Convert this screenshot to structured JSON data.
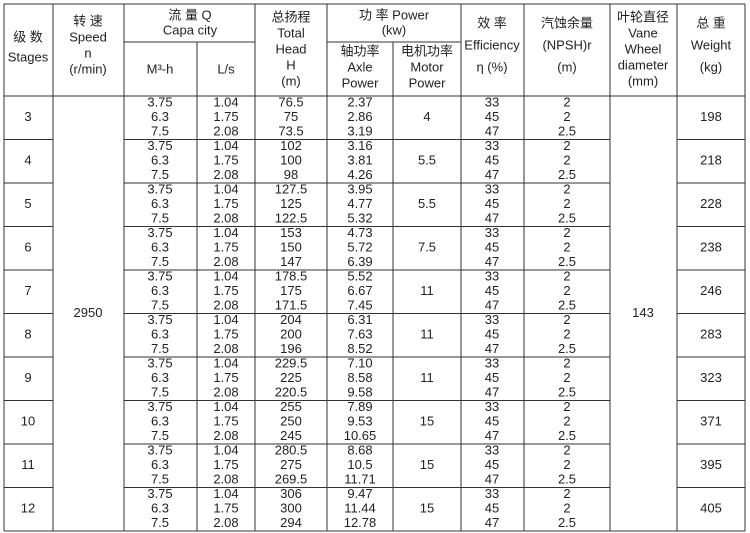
{
  "header": {
    "stages": [
      "级 数",
      "Stages"
    ],
    "speed": [
      "转 速",
      "Speed",
      "n",
      "(r/min)"
    ],
    "flow": [
      "流 量 Q",
      "Capa city"
    ],
    "flow_m3h": [
      "M³-h"
    ],
    "flow_ls": [
      "L/s"
    ],
    "head": [
      "总扬程",
      "Total",
      "Head",
      "H",
      "(m)"
    ],
    "power": [
      "功 率 Power",
      "(kw)"
    ],
    "axle_power": [
      "轴功率",
      "Axle",
      "Power"
    ],
    "motor_power": [
      "电机功率",
      "Motor",
      "Power"
    ],
    "efficiency": [
      "效 率",
      "Efficiency",
      "η (%)"
    ],
    "npsh": [
      "汽蚀余量",
      "(NPSH)r",
      "(m)"
    ],
    "diameter": [
      "叶轮直径",
      "Vane",
      "Wheel",
      "diameter",
      "(mm)"
    ],
    "weight": [
      "总 重",
      "Weight",
      "(kg)"
    ]
  },
  "table": {
    "speed": "2950",
    "diameter": "143",
    "groups": [
      {
        "stage": "3",
        "flow_m3h": [
          "3.75",
          "6.3",
          "7.5"
        ],
        "flow_ls": [
          "1.04",
          "1.75",
          "2.08"
        ],
        "head": [
          "76.5",
          "75",
          "73.5"
        ],
        "axle_power": [
          "2.37",
          "2.86",
          "3.19"
        ],
        "motor_power": "4",
        "efficiency": [
          "33",
          "45",
          "47"
        ],
        "npsh": [
          "2",
          "2",
          "2.5"
        ],
        "weight": "198"
      },
      {
        "stage": "4",
        "flow_m3h": [
          "3.75",
          "6.3",
          "7.5"
        ],
        "flow_ls": [
          "1.04",
          "1.75",
          "2.08"
        ],
        "head": [
          "102",
          "100",
          "98"
        ],
        "axle_power": [
          "3.16",
          "3.81",
          "4.26"
        ],
        "motor_power": "5.5",
        "efficiency": [
          "33",
          "45",
          "47"
        ],
        "npsh": [
          "2",
          "2",
          "2.5"
        ],
        "weight": "218"
      },
      {
        "stage": "5",
        "flow_m3h": [
          "3.75",
          "6.3",
          "7.5"
        ],
        "flow_ls": [
          "1.04",
          "1.75",
          "2.08"
        ],
        "head": [
          "127.5",
          "125",
          "122.5"
        ],
        "axle_power": [
          "3.95",
          "4.77",
          "5.32"
        ],
        "motor_power": "5.5",
        "efficiency": [
          "33",
          "45",
          "47"
        ],
        "npsh": [
          "2",
          "2",
          "2.5"
        ],
        "weight": "228"
      },
      {
        "stage": "6",
        "flow_m3h": [
          "3.75",
          "6.3",
          "7.5"
        ],
        "flow_ls": [
          "1.04",
          "1.75",
          "2.08"
        ],
        "head": [
          "153",
          "150",
          "147"
        ],
        "axle_power": [
          "4.73",
          "5.72",
          "6.39"
        ],
        "motor_power": "7.5",
        "efficiency": [
          "33",
          "45",
          "47"
        ],
        "npsh": [
          "2",
          "2",
          "2.5"
        ],
        "weight": "238"
      },
      {
        "stage": "7",
        "flow_m3h": [
          "3.75",
          "6.3",
          "7.5"
        ],
        "flow_ls": [
          "1.04",
          "1.75",
          "2.08"
        ],
        "head": [
          "178.5",
          "175",
          "171.5"
        ],
        "axle_power": [
          "5.52",
          "6.67",
          "7.45"
        ],
        "motor_power": "11",
        "efficiency": [
          "33",
          "45",
          "47"
        ],
        "npsh": [
          "2",
          "2",
          "2.5"
        ],
        "weight": "246"
      },
      {
        "stage": "8",
        "flow_m3h": [
          "3.75",
          "6.3",
          "7.5"
        ],
        "flow_ls": [
          "1.04",
          "1.75",
          "2.08"
        ],
        "head": [
          "204",
          "200",
          "196"
        ],
        "axle_power": [
          "6.31",
          "7.63",
          "8.52"
        ],
        "motor_power": "11",
        "efficiency": [
          "33",
          "45",
          "47"
        ],
        "npsh": [
          "2",
          "2",
          "2.5"
        ],
        "weight": "283"
      },
      {
        "stage": "9",
        "flow_m3h": [
          "3.75",
          "6.3",
          "7.5"
        ],
        "flow_ls": [
          "1.04",
          "1.75",
          "2.08"
        ],
        "head": [
          "229.5",
          "225",
          "220.5"
        ],
        "axle_power": [
          "7.10",
          "8.58",
          "9.58"
        ],
        "motor_power": "11",
        "efficiency": [
          "33",
          "45",
          "47"
        ],
        "npsh": [
          "2",
          "2",
          "2.5"
        ],
        "weight": "323"
      },
      {
        "stage": "10",
        "flow_m3h": [
          "3.75",
          "6.3",
          "7.5"
        ],
        "flow_ls": [
          "1.04",
          "1.75",
          "2.08"
        ],
        "head": [
          "255",
          "250",
          "245"
        ],
        "axle_power": [
          "7.89",
          "9.53",
          "10.65"
        ],
        "motor_power": "15",
        "efficiency": [
          "33",
          "45",
          "47"
        ],
        "npsh": [
          "2",
          "2",
          "2.5"
        ],
        "weight": "371"
      },
      {
        "stage": "11",
        "flow_m3h": [
          "3.75",
          "6.3",
          "7.5"
        ],
        "flow_ls": [
          "1.04",
          "1.75",
          "2.08"
        ],
        "head": [
          "280.5",
          "275",
          "269.5"
        ],
        "axle_power": [
          "8.68",
          "10.5",
          "11.71"
        ],
        "motor_power": "15",
        "efficiency": [
          "33",
          "45",
          "47"
        ],
        "npsh": [
          "2",
          "2",
          "2.5"
        ],
        "weight": "395"
      },
      {
        "stage": "12",
        "flow_m3h": [
          "3.75",
          "6.3",
          "7.5"
        ],
        "flow_ls": [
          "1.04",
          "1.75",
          "2.08"
        ],
        "head": [
          "306",
          "300",
          "294"
        ],
        "axle_power": [
          "9.47",
          "11.44",
          "12.78"
        ],
        "motor_power": "15",
        "efficiency": [
          "33",
          "45",
          "47"
        ],
        "npsh": [
          "2",
          "2",
          "2.5"
        ],
        "weight": "405"
      }
    ]
  }
}
